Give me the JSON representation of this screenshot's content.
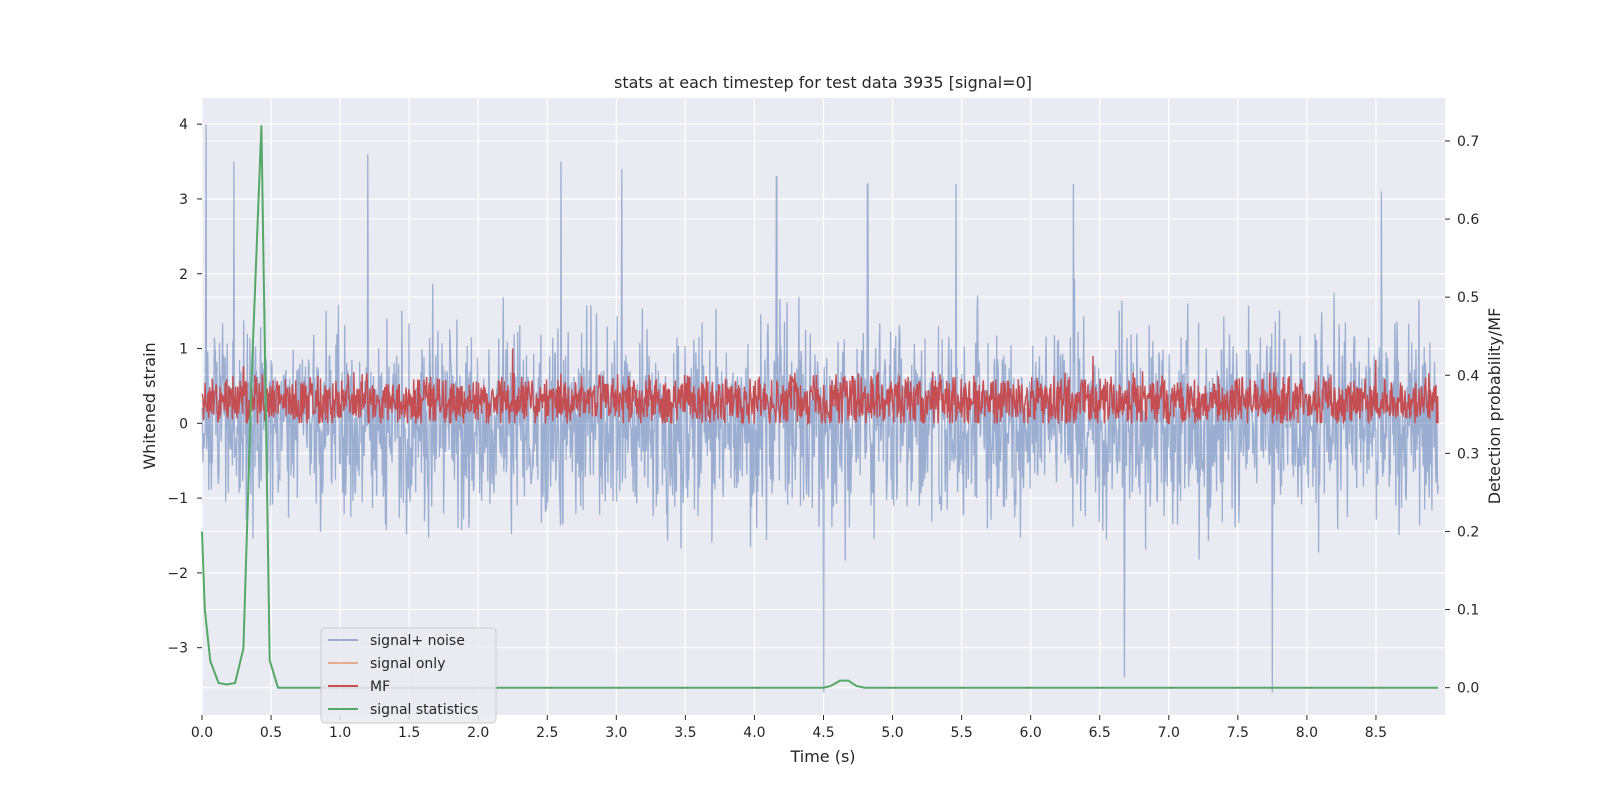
{
  "chart_data": {
    "type": "line",
    "title": "stats at each timestep for test data 3935 [signal=0]",
    "xlabel": "Time (s)",
    "ylabel": "Whitened strain",
    "y2label": "Detection probability/MF",
    "xlim": [
      0.0,
      9.0
    ],
    "ylim": [
      -3.9,
      4.35
    ],
    "y2lim": [
      -0.035,
      0.755
    ],
    "x_ticks": [
      "0.0",
      "0.5",
      "1.0",
      "1.5",
      "2.0",
      "2.5",
      "3.0",
      "3.5",
      "4.0",
      "4.5",
      "5.0",
      "5.5",
      "6.0",
      "6.5",
      "7.0",
      "7.5",
      "8.0",
      "8.5"
    ],
    "y_ticks": [
      "4",
      "3",
      "2",
      "1",
      "0",
      "−1",
      "−2",
      "−3"
    ],
    "y2_ticks": [
      "0.7",
      "0.6",
      "0.5",
      "0.4",
      "0.3",
      "0.2",
      "0.1",
      "0.0"
    ],
    "grid": true,
    "legend_position": "lower-left",
    "colors": {
      "background": "#eaeaf2",
      "grid": "#ffffff",
      "signal_noise": "#4c72b0",
      "signal_only": "#dd8452",
      "mf": "#c44e52",
      "stats": "#55a868"
    },
    "series": [
      {
        "name": "signal+ noise",
        "axis": "left",
        "color": "#4c72b0",
        "description_values": "dense noise, typical range -2.5 to 2.5",
        "peaks_x": [
          0.03,
          0.23,
          1.2,
          2.6,
          3.04,
          4.16,
          4.5,
          4.82,
          5.46,
          6.31,
          6.68,
          7.75,
          8.54
        ],
        "peaks_y": [
          4.0,
          3.5,
          3.6,
          3.5,
          3.4,
          3.3,
          -3.6,
          3.2,
          3.2,
          3.2,
          -3.4,
          -3.6,
          3.1
        ]
      },
      {
        "name": "signal only",
        "axis": "left",
        "color": "#dd8452",
        "values": []
      },
      {
        "name": "MF",
        "axis": "left",
        "color": "#c44e52",
        "description_values": "dense, range approx 0.0 to 0.7",
        "peaks_x": [
          0.3,
          2.25,
          6.45,
          8.5
        ],
        "peaks_y": [
          0.75,
          1.0,
          0.9,
          0.85
        ]
      },
      {
        "name": "signal statistics",
        "axis": "right",
        "color": "#55a868",
        "x": [
          0.0,
          0.02,
          0.06,
          0.12,
          0.18,
          0.24,
          0.3,
          0.36,
          0.43,
          0.49,
          0.55,
          0.6,
          1.0,
          2.0,
          3.0,
          4.0,
          4.5,
          4.55,
          4.62,
          4.68,
          4.74,
          4.8,
          5.0,
          6.0,
          7.0,
          8.0,
          8.95
        ],
        "y": [
          0.2,
          0.1,
          0.034,
          0.006,
          0.004,
          0.006,
          0.05,
          0.4,
          0.72,
          0.035,
          0.0,
          0.0,
          0.0,
          0.0,
          0.0,
          0.0,
          0.0,
          0.002,
          0.009,
          0.009,
          0.002,
          0.0,
          0.0,
          0.0,
          0.0,
          0.0,
          0.0
        ]
      }
    ],
    "legend": [
      "signal+ noise",
      "signal only",
      "MF",
      "signal statistics"
    ]
  }
}
